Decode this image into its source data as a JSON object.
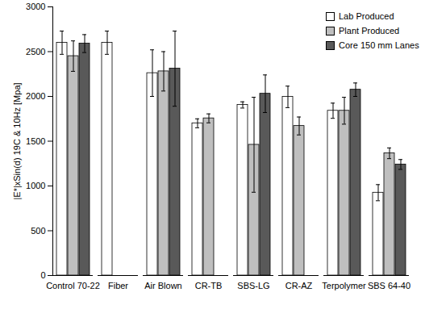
{
  "chart_data": {
    "type": "bar",
    "y_label": "|E*|xSin(d) 19C & 10Hz [Mpa]",
    "categories": [
      "Control 70-22",
      "Fiber",
      "Air Blown",
      "CR-TB",
      "SBS-LG",
      "CR-AZ",
      "Terpolymer",
      "SBS 64-40"
    ],
    "series": [
      {
        "name": "Lab Produced",
        "color": "#ffffff",
        "values": [
          2600,
          2600,
          2260,
          1700,
          1905,
          1995,
          1840,
          925
        ],
        "errors": [
          130,
          130,
          260,
          50,
          35,
          120,
          85,
          90
        ]
      },
      {
        "name": "Plant Produced",
        "color": "#bfbfbf",
        "values": [
          2450,
          null,
          2280,
          1755,
          1460,
          1670,
          1840,
          1365
        ],
        "errors": [
          170,
          null,
          220,
          50,
          530,
          100,
          150,
          60
        ]
      },
      {
        "name": "Core 150 mm Lanes",
        "color": "#595959",
        "values": [
          2590,
          null,
          2310,
          null,
          2030,
          null,
          2075,
          1240
        ],
        "errors": [
          100,
          null,
          420,
          null,
          210,
          null,
          75,
          55
        ]
      }
    ],
    "ylim": [
      0,
      3000
    ],
    "yticks": [
      0,
      500,
      1000,
      1500,
      2000,
      2500,
      3000
    ],
    "grid": false,
    "legend": "top-right"
  }
}
